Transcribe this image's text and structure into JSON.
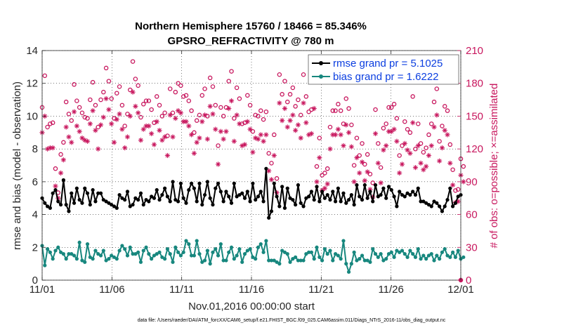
{
  "chart_data": {
    "type": "line",
    "title": "Northern Hemisphere 15760 / 18466 = 85.346%",
    "subtitle": "GPSRO_REFRACTIVITY @ 780 m",
    "xlabel": "Nov.01,2016 00:00:00 start",
    "ylabel_left": "rmse and bias (model - observation)",
    "ylabel_right": "# of obs: o=possible; ×=assimilated",
    "footer": "data file: /Users/raeder/DAI/ATM_forcXX/CAM6_setup/f.e21.FHIST_BGC.f09_025.CAM6assim.011/Diags_NTrS_2016-11/obs_diag_output.nc",
    "x_range_days": [
      0,
      30
    ],
    "ylim_left": [
      0,
      14
    ],
    "ylim_right": [
      0,
      210
    ],
    "x_ticks": [
      {
        "day": 0,
        "label": "11/01"
      },
      {
        "day": 5,
        "label": "11/06"
      },
      {
        "day": 10,
        "label": "11/11"
      },
      {
        "day": 15,
        "label": "11/16"
      },
      {
        "day": 20,
        "label": "11/21"
      },
      {
        "day": 25,
        "label": "11/26"
      },
      {
        "day": 30,
        "label": "12/01"
      }
    ],
    "y_ticks_left": [
      0,
      2,
      4,
      6,
      8,
      10,
      12,
      14
    ],
    "y_ticks_right": [
      0,
      30,
      60,
      90,
      120,
      150,
      180,
      210
    ],
    "colors": {
      "rmse": "#000000",
      "bias": "#17877e",
      "obs": "#c8175e",
      "legend_text": "#0b3ee0"
    },
    "series": [
      {
        "name": "rmse",
        "legend": "rmse grand pr = 5.1025",
        "axis": "left",
        "values": [
          5.0,
          4.7,
          4.5,
          4.4,
          5.3,
          5.5,
          4.8,
          4.6,
          6.1,
          4.6,
          4.2,
          5.3,
          4.7,
          5.6,
          4.9,
          4.7,
          5.6,
          5.3,
          4.6,
          5.5,
          4.8,
          5.3,
          5.3,
          4.9,
          4.8,
          4.7,
          4.6,
          4.5,
          4.4,
          5.2,
          5.0,
          4.9,
          5.4,
          4.5,
          4.6,
          5.0,
          4.9,
          5.3,
          4.6,
          4.9,
          4.8,
          5.1,
          5.0,
          5.5,
          4.9,
          5.2,
          5.6,
          5.1,
          4.8,
          6.0,
          4.9,
          4.8,
          5.9,
          5.0,
          4.7,
          5.5,
          5.9,
          5.6,
          4.8,
          5.9,
          4.6,
          5.2,
          6.0,
          5.0,
          4.6,
          5.6,
          5.9,
          5.4,
          4.8,
          5.4,
          5.1,
          4.7,
          5.9,
          5.1,
          5.2,
          5.3,
          5.0,
          5.4,
          4.8,
          5.9,
          4.9,
          5.1,
          5.4,
          4.8,
          6.8,
          3.8,
          4.2,
          5.9,
          5.1,
          4.5,
          5.7,
          4.4,
          5.6,
          5.0,
          4.9,
          4.6,
          5.8,
          4.7,
          4.5,
          5.0,
          5.1,
          5.4,
          4.9,
          5.7,
          4.8,
          5.4,
          5.0,
          5.2,
          4.9,
          5.4,
          4.8,
          5.6,
          4.8,
          5.3,
          4.7,
          4.9,
          5.2,
          4.6,
          5.8,
          5.1,
          4.9,
          5.8,
          5.0,
          5.4,
          4.8,
          5.8,
          5.1,
          5.2,
          5.6,
          5.0,
          5.7,
          5.5,
          5.1,
          4.5,
          5.4,
          5.2,
          5.1,
          5.3,
          5.2,
          5.4,
          5.2,
          5.6,
          4.8,
          4.8,
          4.7,
          4.6,
          4.5,
          4.8,
          4.7,
          4.5,
          4.2,
          4.5,
          4.9,
          5.6,
          4.5,
          4.7,
          5.1,
          5.2
        ]
      },
      {
        "name": "bias",
        "legend": "bias grand pr = 1.6222",
        "axis": "left",
        "values": [
          2.1,
          0.9,
          1.9,
          1.7,
          1.3,
          1.8,
          2.0,
          1.7,
          1.6,
          1.3,
          1.6,
          1.6,
          1.5,
          1.3,
          2.3,
          1.2,
          1.1,
          2.2,
          1.4,
          1.3,
          1.8,
          1.6,
          1.5,
          1.8,
          1.2,
          1.3,
          1.5,
          1.4,
          1.3,
          1.8,
          2.1,
          1.9,
          1.5,
          2.0,
          1.6,
          1.6,
          1.7,
          1.1,
          1.8,
          2.0,
          1.6,
          1.3,
          1.5,
          1.6,
          1.7,
          1.4,
          1.3,
          1.9,
          1.6,
          1.1,
          2.0,
          1.7,
          1.5,
          1.7,
          2.4,
          2.2,
          1.5,
          1.5,
          2.4,
          1.6,
          1.1,
          1.2,
          1.8,
          1.0,
          1.7,
          1.9,
          1.5,
          2.2,
          1.2,
          1.2,
          1.7,
          2.0,
          1.3,
          1.5,
          1.9,
          1.1,
          1.6,
          1.8,
          1.9,
          1.4,
          1.3,
          2.0,
          2.2,
          1.7,
          2.4,
          1.2,
          1.2,
          1.2,
          1.1,
          1.0,
          1.8,
          1.7,
          1.6,
          1.1,
          1.3,
          1.4,
          1.2,
          1.2,
          1.2,
          1.6,
          1.7,
          1.7,
          1.3,
          2.0,
          1.4,
          1.2,
          1.9,
          1.6,
          1.8,
          1.2,
          1.6,
          1.5,
          1.3,
          2.4,
          1.0,
          0.5,
          1.0,
          1.7,
          1.2,
          1.3,
          1.5,
          1.2,
          1.2,
          1.1,
          1.9,
          1.6,
          1.4,
          1.6,
          1.2,
          1.3,
          1.6,
          1.7,
          1.4,
          1.8,
          1.7,
          1.8,
          1.6,
          1.4,
          1.8,
          1.6,
          1.4,
          1.9,
          1.3,
          1.5,
          1.3,
          1.5,
          1.6,
          1.2,
          1.5,
          1.3,
          1.7,
          1.9,
          1.5,
          1.4,
          1.7,
          1.4,
          1.8,
          1.3,
          1.4
        ]
      },
      {
        "name": "obs_possible",
        "axis": "right",
        "marker": "o",
        "values": [
          158,
          187,
          140,
          143,
          144,
          102,
          80,
          115,
          126,
          163,
          152,
          146,
          179,
          164,
          158,
          153,
          149,
          148,
          165,
          181,
          160,
          140,
          165,
          172,
          194,
          182,
          166,
          148,
          171,
          177,
          160,
          141,
          152,
          174,
          200,
          184,
          178,
          149,
          161,
          164,
          164,
          156,
          144,
          168,
          160,
          150,
          153,
          132,
          175,
          153,
          172,
          180,
          178,
          168,
          169,
          164,
          155,
          135,
          146,
          151,
          169,
          175,
          150,
          185,
          177,
          160,
          123,
          158,
          150,
          158,
          182,
          191,
          148,
          176,
          166,
          143,
          144,
          169,
          160,
          136,
          151,
          150,
          155,
          147,
          154,
          116,
          107,
          133,
          93,
          188,
          170,
          182,
          163,
          170,
          176,
          159,
          165,
          151,
          188,
          168,
          154,
          156,
          183,
          104,
          130,
          96,
          98,
          102,
          140,
          155,
          155,
          161,
          155,
          143,
          166,
          157,
          142,
          105,
          130,
          114,
          125,
          106,
          115,
          97,
          89,
          156,
          125,
          103,
          139,
          143,
          158,
          158,
          161,
          148,
          114,
          123,
          145,
          138,
          135,
          168,
          120,
          143,
          125,
          117,
          121,
          133,
          143,
          163,
          175,
          127,
          141,
          159,
          155,
          124,
          101,
          82,
          83,
          111,
          104
        ]
      },
      {
        "name": "obs_assimilated",
        "axis": "right",
        "marker": "x",
        "values": [
          135,
          150,
          120,
          121,
          121,
          86,
          75,
          98,
          110,
          140,
          131,
          126,
          154,
          141,
          136,
          130,
          128,
          127,
          143,
          155,
          137,
          120,
          142,
          149,
          166,
          156,
          143,
          126,
          147,
          152,
          138,
          121,
          131,
          150,
          172,
          159,
          153,
          128,
          138,
          141,
          141,
          134,
          124,
          145,
          137,
          128,
          131,
          114,
          151,
          131,
          148,
          155,
          153,
          145,
          145,
          141,
          133,
          116,
          126,
          130,
          145,
          151,
          129,
          159,
          152,
          138,
          106,
          136,
          129,
          136,
          157,
          164,
          127,
          151,
          143,
          123,
          124,
          145,
          138,
          117,
          130,
          129,
          133,
          127,
          133,
          100,
          92,
          114,
          80,
          162,
          146,
          157,
          140,
          146,
          151,
          137,
          142,
          130,
          162,
          144,
          133,
          134,
          157,
          90,
          112,
          82,
          84,
          88,
          120,
          133,
          133,
          138,
          133,
          123,
          142,
          135,
          122,
          90,
          112,
          98,
          108,
          91,
          99,
          83,
          76,
          134,
          107,
          89,
          119,
          123,
          136,
          136,
          138,
          127,
          98,
          106,
          125,
          119,
          116,
          144,
          103,
          123,
          107,
          101,
          104,
          114,
          123,
          140,
          151,
          109,
          121,
          137,
          133,
          107,
          87,
          71,
          72,
          96,
          90
        ]
      }
    ]
  }
}
